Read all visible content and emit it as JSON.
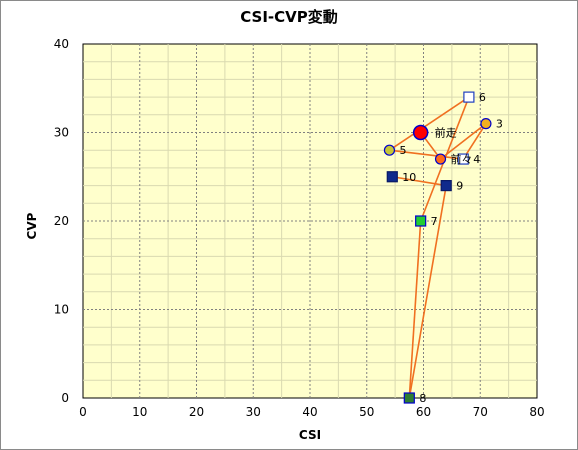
{
  "chart_data": {
    "type": "scatter",
    "title": "CSI-CVP変動",
    "xlabel": "CSI",
    "ylabel": "CVP",
    "xlim": [
      0,
      80
    ],
    "ylim": [
      0,
      40
    ],
    "x_ticks": [
      0,
      10,
      20,
      30,
      40,
      50,
      60,
      70,
      80
    ],
    "y_ticks": [
      0,
      10,
      20,
      30,
      40
    ],
    "grid": true,
    "colors": {
      "plot_bg": "#FFFFCC",
      "grid_major": "#808080",
      "grid_minor": "#D9D9B0",
      "line": "#F07020"
    },
    "points": [
      {
        "label": "前走",
        "x": 59.5,
        "y": 30,
        "shape": "circle-large",
        "fill": "#FF0000",
        "stroke": "#0000CC"
      },
      {
        "label": "前々",
        "x": 63,
        "y": 27,
        "shape": "circle",
        "fill": "#FF6A1A",
        "stroke": "#0000CC"
      },
      {
        "label": "3",
        "x": 71,
        "y": 31,
        "shape": "circle",
        "fill": "#F2B01E",
        "stroke": "#0000CC"
      },
      {
        "label": "4",
        "x": 67,
        "y": 27,
        "shape": "square",
        "fill": "#FFFFFF",
        "stroke": "#1F3FBF"
      },
      {
        "label": "5",
        "x": 54,
        "y": 28,
        "shape": "circle",
        "fill": "#C6C638",
        "stroke": "#0000CC"
      },
      {
        "label": "6",
        "x": 68,
        "y": 34,
        "shape": "square",
        "fill": "#FFFFFF",
        "stroke": "#1F3FBF"
      },
      {
        "label": "7",
        "x": 59.5,
        "y": 20,
        "shape": "square",
        "fill": "#22CC33",
        "stroke": "#0000CC"
      },
      {
        "label": "8",
        "x": 57.5,
        "y": 0,
        "shape": "square",
        "fill": "#2E7D32",
        "stroke": "#0000CC"
      },
      {
        "label": "9",
        "x": 64,
        "y": 24,
        "shape": "square",
        "fill": "#102A8C",
        "stroke": "#0A1A66"
      },
      {
        "label": "10",
        "x": 54.5,
        "y": 25,
        "shape": "square",
        "fill": "#102A8C",
        "stroke": "#0A1A66"
      }
    ],
    "path_order": [
      "10",
      "9",
      "8",
      "7",
      "6",
      "5",
      "4",
      "3",
      "前々",
      "前走"
    ]
  }
}
